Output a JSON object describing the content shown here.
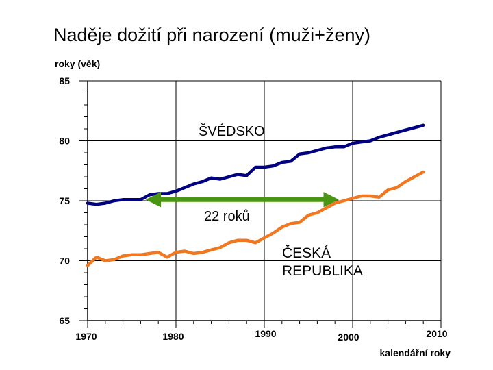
{
  "chart_data": {
    "type": "line",
    "title": "Naděje dožití při narození (muži+ženy)",
    "ylabel": "roky (věk)",
    "xlabel": "kalendářní roky",
    "xlim": [
      1970,
      2010
    ],
    "ylim": [
      65,
      85
    ],
    "x_ticks": [
      "1970",
      "1980",
      "1990",
      "2000",
      "2010"
    ],
    "y_ticks": [
      "65",
      "70",
      "75",
      "80",
      "85"
    ],
    "grid": true,
    "series": [
      {
        "name": "ŠVÉDSKO",
        "color": "#000080",
        "x": [
          1970,
          1971,
          1972,
          1973,
          1974,
          1975,
          1976,
          1977,
          1978,
          1979,
          1980,
          1981,
          1982,
          1983,
          1984,
          1985,
          1986,
          1987,
          1988,
          1989,
          1990,
          1991,
          1992,
          1993,
          1994,
          1995,
          1996,
          1997,
          1998,
          1999,
          2000,
          2001,
          2002,
          2003,
          2004,
          2005,
          2006,
          2007,
          2008
        ],
        "y": [
          74.8,
          74.7,
          74.8,
          75.0,
          75.1,
          75.1,
          75.1,
          75.5,
          75.6,
          75.6,
          75.8,
          76.1,
          76.4,
          76.6,
          76.9,
          76.8,
          77.0,
          77.2,
          77.1,
          77.8,
          77.8,
          77.9,
          78.2,
          78.3,
          78.9,
          79.0,
          79.2,
          79.4,
          79.5,
          79.5,
          79.8,
          79.9,
          80.0,
          80.3,
          80.5,
          80.7,
          80.9,
          81.1,
          81.3
        ]
      },
      {
        "name": "ČESKÁ REPUBLIKA",
        "color": "#f07820",
        "x": [
          1970,
          1971,
          1972,
          1973,
          1974,
          1975,
          1976,
          1977,
          1978,
          1979,
          1980,
          1981,
          1982,
          1983,
          1984,
          1985,
          1986,
          1987,
          1988,
          1989,
          1990,
          1991,
          1992,
          1993,
          1994,
          1995,
          1996,
          1997,
          1998,
          1999,
          2000,
          2001,
          2002,
          2003,
          2004,
          2005,
          2006,
          2007,
          2008
        ],
        "y": [
          69.6,
          70.3,
          70.0,
          70.1,
          70.4,
          70.5,
          70.5,
          70.6,
          70.7,
          70.3,
          70.7,
          70.8,
          70.6,
          70.7,
          70.9,
          71.1,
          71.5,
          71.7,
          71.7,
          71.5,
          71.9,
          72.3,
          72.8,
          73.1,
          73.2,
          73.8,
          74.0,
          74.4,
          74.8,
          75.0,
          75.2,
          75.4,
          75.4,
          75.3,
          75.9,
          76.1,
          76.6,
          77.0,
          77.4
        ]
      }
    ],
    "annotations": {
      "sweden_label": "ŠVÉDSKO",
      "gap_label": "22 roků",
      "gap_arrow": {
        "x_start": 1976.5,
        "x_end": 1998.5,
        "y": 75.1,
        "color": "#4a9614"
      },
      "cz_label_line1": "ČESKÁ",
      "cz_label_line2": "REPUBLIKA"
    }
  }
}
